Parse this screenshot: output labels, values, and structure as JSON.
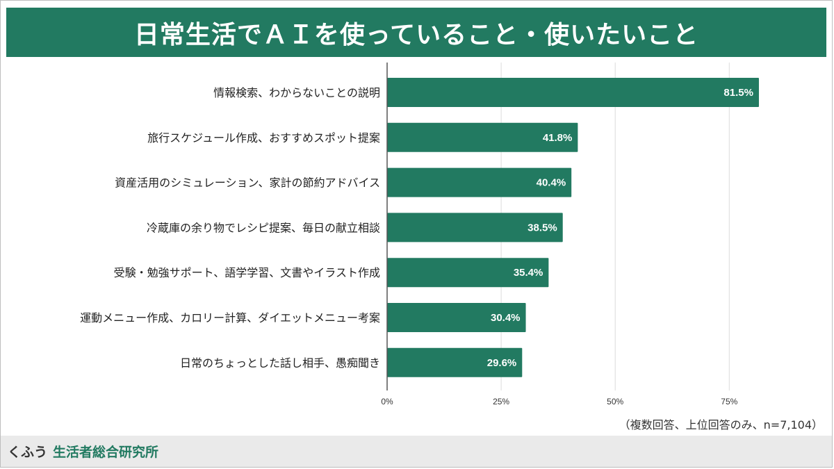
{
  "colors": {
    "accent": "#227a61",
    "bar": "#227a61",
    "grid": "#dcdcdc",
    "axis": "#555555"
  },
  "header": {
    "title": "日常生活でＡＩを使っていること・使いたいこと"
  },
  "note": "（複数回答、上位回答のみ、n=7,104）",
  "footer": {
    "brand_prefix": "くふう",
    "brand_name": "生活者総合研究所"
  },
  "chart_data": {
    "type": "bar",
    "orientation": "horizontal",
    "title": "日常生活でＡＩを使っていること・使いたいこと",
    "categories": [
      "情報検索、わからないことの説明",
      "旅行スケジュール作成、おすすめスポット提案",
      "資産活用のシミュレーション、家計の節約アドバイス",
      "冷蔵庫の余り物でレシピ提案、毎日の献立相談",
      "受験・勉強サポート、語学学習、文書やイラスト作成",
      "運動メニュー作成、カロリー計算、ダイエットメニュー考案",
      "日常のちょっとした話し相手、愚痴聞き"
    ],
    "values": [
      81.5,
      41.8,
      40.4,
      38.5,
      35.4,
      30.4,
      29.6
    ],
    "value_labels": [
      "81.5%",
      "41.8%",
      "40.4%",
      "38.5%",
      "35.4%",
      "30.4%",
      "29.6%"
    ],
    "xlim": [
      0,
      100
    ],
    "xticks": [
      0,
      25,
      50,
      75
    ],
    "xtick_labels": [
      "0%",
      "25%",
      "50%",
      "75%"
    ],
    "grid": true,
    "legend": "none"
  }
}
